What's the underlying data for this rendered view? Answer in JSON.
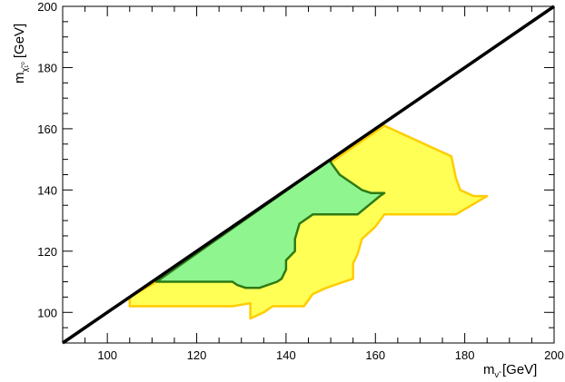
{
  "chart_data": {
    "type": "area",
    "xlim": [
      90,
      200
    ],
    "ylim": [
      90,
      200
    ],
    "x_ticks": [
      "100",
      "120",
      "140",
      "160",
      "180",
      "200"
    ],
    "y_ticks": [
      "100",
      "120",
      "140",
      "160",
      "180",
      "200"
    ],
    "xlabel": {
      "main": "m",
      "sub": "ν̃",
      "unit": "[GeV]"
    },
    "ylabel": {
      "main": "m",
      "sub": "χ̃₁⁰",
      "unit": "[GeV]"
    },
    "grid": false,
    "diagonal": {
      "x": [
        90,
        200
      ],
      "y": [
        90,
        200
      ],
      "color": "#000000"
    },
    "regions": [
      {
        "fill": "#ffff55",
        "stroke": "#ffcc00",
        "points": [
          [
            105,
            102
          ],
          [
            105,
            105
          ],
          [
            111,
            110
          ],
          [
            162,
            161
          ],
          [
            177,
            151
          ],
          [
            178,
            144
          ],
          [
            179,
            140
          ],
          [
            182,
            138
          ],
          [
            185,
            138
          ],
          [
            178,
            132
          ],
          [
            162,
            132
          ],
          [
            160,
            128
          ],
          [
            157,
            124
          ],
          [
            156,
            119
          ],
          [
            155,
            116
          ],
          [
            155,
            111
          ],
          [
            153,
            110
          ],
          [
            149,
            108
          ],
          [
            146,
            106
          ],
          [
            144,
            102
          ],
          [
            137,
            102
          ],
          [
            135,
            100
          ],
          [
            132,
            98
          ],
          [
            132,
            103
          ],
          [
            128,
            102
          ],
          [
            125,
            102
          ],
          [
            105,
            102
          ]
        ]
      },
      {
        "fill": "#8ff58f",
        "stroke": "#2e7a16",
        "points": [
          [
            111,
            110
          ],
          [
            150,
            150
          ],
          [
            150,
            149
          ],
          [
            152,
            145
          ],
          [
            157,
            140
          ],
          [
            159,
            139
          ],
          [
            162,
            139
          ],
          [
            161,
            138
          ],
          [
            156,
            132
          ],
          [
            146,
            132
          ],
          [
            145,
            131
          ],
          [
            143,
            129
          ],
          [
            142,
            124
          ],
          [
            142,
            120
          ],
          [
            140,
            117
          ],
          [
            140,
            114
          ],
          [
            139,
            111
          ],
          [
            138,
            110
          ],
          [
            134,
            108
          ],
          [
            131,
            108
          ],
          [
            129,
            109
          ],
          [
            128,
            110
          ],
          [
            111,
            110
          ]
        ]
      }
    ]
  }
}
